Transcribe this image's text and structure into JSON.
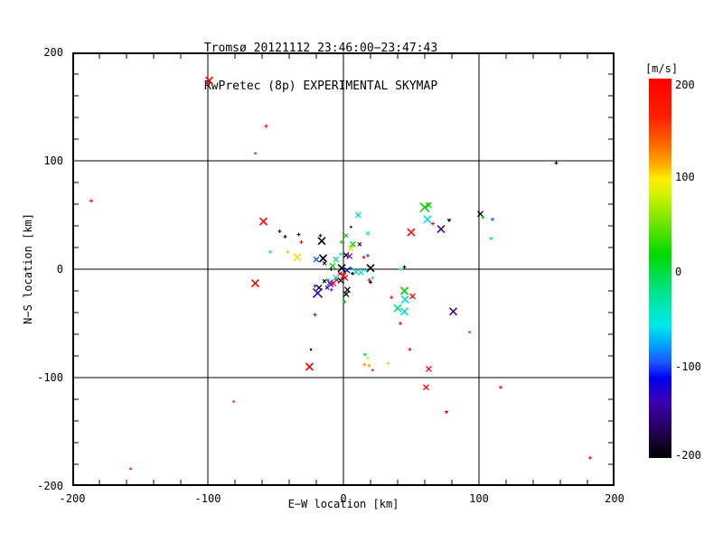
{
  "title_line1": "Tromsø 20121112 23:46:00−23:47:43",
  "title_line2": "RwPretec (8p) EXPERIMENTAL SKYMAP",
  "chart_data": {
    "type": "scatter",
    "title": "Tromsø 20121112 23:46:00−23:47:43 / RwPretec (8p) EXPERIMENTAL SKYMAP",
    "xlabel": "E−W location [km]",
    "ylabel": "N−S location [km]",
    "xlim": [
      -200,
      200
    ],
    "ylim": [
      -200,
      200
    ],
    "xticks": [
      {
        "v": -200,
        "label": "-200"
      },
      {
        "v": -100,
        "label": "-100"
      },
      {
        "v": 0,
        "label": "0"
      },
      {
        "v": 100,
        "label": "100"
      },
      {
        "v": 200,
        "label": "200"
      }
    ],
    "yticks": [
      {
        "v": -200,
        "label": "-200"
      },
      {
        "v": -100,
        "label": "-100"
      },
      {
        "v": 0,
        "label": "0"
      },
      {
        "v": 100,
        "label": "100"
      },
      {
        "v": 200,
        "label": "200"
      }
    ],
    "grid_values": [
      -100,
      0,
      100
    ],
    "minor_tick_step": 20,
    "grid": "on",
    "colorbar": {
      "label": "[m/s]",
      "min": -200,
      "max": 200,
      "ticks": [
        {
          "v": 200,
          "label": "200"
        },
        {
          "v": 100,
          "label": "100"
        },
        {
          "v": 0,
          "label": "0"
        },
        {
          "v": -100,
          "label": "-100"
        },
        {
          "v": -200,
          "label": "-200"
        }
      ],
      "stops": [
        {
          "p": 0.0,
          "c": "#ff0000"
        },
        {
          "p": 0.1,
          "c": "#ff1e00"
        },
        {
          "p": 0.175,
          "c": "#ff6a00"
        },
        {
          "p": 0.225,
          "c": "#ffaa00"
        },
        {
          "p": 0.265,
          "c": "#ffee00"
        },
        {
          "p": 0.315,
          "c": "#c8f000"
        },
        {
          "p": 0.39,
          "c": "#62e400"
        },
        {
          "p": 0.465,
          "c": "#00d800"
        },
        {
          "p": 0.525,
          "c": "#00e059"
        },
        {
          "p": 0.59,
          "c": "#00e6ad"
        },
        {
          "p": 0.65,
          "c": "#00e9e9"
        },
        {
          "p": 0.7,
          "c": "#00a5ff"
        },
        {
          "p": 0.75,
          "c": "#1e50ff"
        },
        {
          "p": 0.79,
          "c": "#0000ee"
        },
        {
          "p": 0.85,
          "c": "#3c00b4"
        },
        {
          "p": 0.91,
          "c": "#2d0070"
        },
        {
          "p": 0.965,
          "c": "#130028"
        },
        {
          "p": 1.0,
          "c": "#000000"
        }
      ]
    },
    "points": [
      {
        "x": -99,
        "y": 174,
        "c": "#ff0000",
        "m": "x",
        "s": 4
      },
      {
        "x": -57,
        "y": 132,
        "c": "#ff0000",
        "m": "+",
        "s": 2
      },
      {
        "x": -65,
        "y": 107,
        "c": "#ff0000",
        "m": ".",
        "s": 1
      },
      {
        "x": 157,
        "y": 98,
        "c": "#000000",
        "m": "+",
        "s": 2
      },
      {
        "x": -186,
        "y": 63,
        "c": "#ff0000",
        "m": "+",
        "s": 2
      },
      {
        "x": 63,
        "y": 59,
        "c": "#00d000",
        "m": "x",
        "s": 3
      },
      {
        "x": 60,
        "y": 57,
        "c": "#00d000",
        "m": "x",
        "s": 5
      },
      {
        "x": 101,
        "y": 51,
        "c": "#000000",
        "m": "x",
        "s": 3
      },
      {
        "x": 103,
        "y": 48,
        "c": "#00d000",
        "m": "+",
        "s": 2
      },
      {
        "x": 11,
        "y": 50,
        "c": "#00dcdc",
        "m": "x",
        "s": 3
      },
      {
        "x": 110,
        "y": 46,
        "c": "#0055ff",
        "m": "+",
        "s": 2
      },
      {
        "x": 62,
        "y": 46,
        "c": "#00dcdc",
        "m": "x",
        "s": 4
      },
      {
        "x": 78,
        "y": 45,
        "c": "#000000",
        "m": "^",
        "s": 1
      },
      {
        "x": -59,
        "y": 44,
        "c": "#ff0000",
        "m": "x",
        "s": 4
      },
      {
        "x": 66,
        "y": 42,
        "c": "#ff0000",
        "m": "+",
        "s": 2
      },
      {
        "x": 5.5,
        "y": 39,
        "c": "#000000",
        "m": ".",
        "s": 1
      },
      {
        "x": 72,
        "y": 37,
        "c": "#4b0082",
        "m": "x",
        "s": 4
      },
      {
        "x": -47,
        "y": 35,
        "c": "#0000aa",
        "m": "+",
        "s": 2
      },
      {
        "x": 50,
        "y": 34,
        "c": "#ff0000",
        "m": "x",
        "s": 4
      },
      {
        "x": 18,
        "y": 33,
        "c": "#00dcdc",
        "m": "x",
        "s": 2
      },
      {
        "x": -33,
        "y": 32,
        "c": "#000000",
        "m": "+",
        "s": 2
      },
      {
        "x": 2,
        "y": 31,
        "c": "#00d000",
        "m": "x",
        "s": 2
      },
      {
        "x": -17,
        "y": 31,
        "c": "#0000aa",
        "m": "+",
        "s": 2
      },
      {
        "x": -43,
        "y": 30,
        "c": "#000000",
        "m": "+",
        "s": 2
      },
      {
        "x": 109,
        "y": 28,
        "c": "#00dcdc",
        "m": "^",
        "s": 1
      },
      {
        "x": -16,
        "y": 26,
        "c": "#000000",
        "m": "x",
        "s": 4
      },
      {
        "x": -31,
        "y": 25,
        "c": "#ff0000",
        "m": "+",
        "s": 2
      },
      {
        "x": -1.5,
        "y": 25,
        "c": "#00d000",
        "m": "+",
        "s": 2
      },
      {
        "x": 7,
        "y": 23,
        "c": "#00d000",
        "m": "x",
        "s": 3
      },
      {
        "x": 12,
        "y": 23,
        "c": "#000000",
        "m": "x",
        "s": 2
      },
      {
        "x": 5.5,
        "y": 19,
        "c": "#e8e000",
        "m": "x",
        "s": 3
      },
      {
        "x": -54,
        "y": 16,
        "c": "#00dcdc",
        "m": "+",
        "s": 2
      },
      {
        "x": -41,
        "y": 16,
        "c": "#b0dd00",
        "m": "+",
        "s": 2
      },
      {
        "x": -2,
        "y": 14,
        "c": "#00dcdc",
        "m": "+",
        "s": 2
      },
      {
        "x": 2,
        "y": 13,
        "c": "#000000",
        "m": "x",
        "s": 3
      },
      {
        "x": 18,
        "y": 12.5,
        "c": "#0055ff",
        "m": "+",
        "s": 2
      },
      {
        "x": 4.5,
        "y": 12,
        "c": "#8800cc",
        "m": "x",
        "s": 3
      },
      {
        "x": -34,
        "y": 11,
        "c": "#e8e000",
        "m": "x",
        "s": 4
      },
      {
        "x": 15,
        "y": 11,
        "c": "#ff0000",
        "m": "+",
        "s": 2
      },
      {
        "x": -15,
        "y": 10,
        "c": "#000000",
        "m": "x",
        "s": 4
      },
      {
        "x": -20,
        "y": 9,
        "c": "#0055ff",
        "m": "x",
        "s": 3
      },
      {
        "x": -5.5,
        "y": 9,
        "c": "#00dd88",
        "m": "x",
        "s": 3
      },
      {
        "x": -14,
        "y": 5.5,
        "c": "#000000",
        "m": "x",
        "s": 2
      },
      {
        "x": -8,
        "y": 3,
        "c": "#00d000",
        "m": "x",
        "s": 3
      },
      {
        "x": 45,
        "y": 2,
        "c": "#000000",
        "m": "+",
        "s": 2
      },
      {
        "x": -1.3,
        "y": 1,
        "c": "#000000",
        "m": "x",
        "s": 4
      },
      {
        "x": 5.3,
        "y": 1,
        "c": "#0055ff",
        "m": "+",
        "s": 2
      },
      {
        "x": 20,
        "y": 1,
        "c": "#000000",
        "m": "x",
        "s": 4
      },
      {
        "x": 42,
        "y": 0,
        "c": "#00dcdc",
        "m": "+",
        "s": 2
      },
      {
        "x": -9,
        "y": 0,
        "c": "#000000",
        "m": "+",
        "s": 2
      },
      {
        "x": 17,
        "y": -1,
        "c": "#00dcdc",
        "m": "+",
        "s": 2
      },
      {
        "x": 2.7,
        "y": -1,
        "c": "#0000aa",
        "m": "x",
        "s": 3
      },
      {
        "x": 9.3,
        "y": -2.5,
        "c": "#00dcdc",
        "m": "x",
        "s": 3
      },
      {
        "x": -2.7,
        "y": -4,
        "c": "#cc0000",
        "m": "x",
        "s": 2
      },
      {
        "x": 6.7,
        "y": -4,
        "c": "#000000",
        "m": "+",
        "s": 2
      },
      {
        "x": 0,
        "y": -6,
        "c": "#ff0000",
        "m": "x",
        "s": 3
      },
      {
        "x": 13,
        "y": -3,
        "c": "#00dcdc",
        "m": "x",
        "s": 3
      },
      {
        "x": 21.5,
        "y": -8,
        "c": "#00dcdc",
        "m": "+",
        "s": 2
      },
      {
        "x": -5.5,
        "y": -8,
        "c": "#00dcdc",
        "m": "x",
        "s": 3
      },
      {
        "x": 1.3,
        "y": -8,
        "c": "#ff0000",
        "m": "x",
        "s": 3
      },
      {
        "x": -5,
        "y": -10,
        "c": "#ff0000",
        "m": "x",
        "s": 2
      },
      {
        "x": -11.5,
        "y": -10,
        "c": "#00d000",
        "m": "+",
        "s": 2
      },
      {
        "x": 19,
        "y": -10,
        "c": "#ff0000",
        "m": "+",
        "s": 2
      },
      {
        "x": -2,
        "y": -10.5,
        "c": "#000000",
        "m": "x",
        "s": 3
      },
      {
        "x": -14,
        "y": -11,
        "c": "#000000",
        "m": "x",
        "s": 2
      },
      {
        "x": 20,
        "y": -12,
        "c": "#000000",
        "m": "+",
        "s": 2
      },
      {
        "x": -10,
        "y": -12.5,
        "c": "#0055ff",
        "m": "x",
        "s": 3
      },
      {
        "x": -65,
        "y": -13,
        "c": "#ff0000",
        "m": "x",
        "s": 4
      },
      {
        "x": -7.5,
        "y": -13,
        "c": "#ff0000",
        "m": "x",
        "s": 3
      },
      {
        "x": -9.3,
        "y": -14,
        "c": "#8800cc",
        "m": "x",
        "s": 3
      },
      {
        "x": -21,
        "y": -15.5,
        "c": "#8800cc",
        "m": "+",
        "s": 2
      },
      {
        "x": -18,
        "y": -17,
        "c": "#000000",
        "m": "x",
        "s": 3
      },
      {
        "x": -12,
        "y": -17,
        "c": "#0000aa",
        "m": "x",
        "s": 2
      },
      {
        "x": 3,
        "y": -19,
        "c": "#000000",
        "m": "x",
        "s": 3
      },
      {
        "x": -8.9,
        "y": -19,
        "c": "#8800cc",
        "m": "+",
        "s": 2
      },
      {
        "x": 45,
        "y": -20,
        "c": "#00d000",
        "m": "x",
        "s": 4
      },
      {
        "x": -19,
        "y": -22,
        "c": "#2a00cc",
        "m": "x",
        "s": 5
      },
      {
        "x": 2,
        "y": -23,
        "c": "#000000",
        "m": "x",
        "s": 3
      },
      {
        "x": 51,
        "y": -25,
        "c": "#ff0000",
        "m": "x",
        "s": 3
      },
      {
        "x": 35.5,
        "y": -26,
        "c": "#ff0000",
        "m": "+",
        "s": 2
      },
      {
        "x": 45.5,
        "y": -28,
        "c": "#00dcdc",
        "m": "x",
        "s": 4
      },
      {
        "x": 1,
        "y": -30,
        "c": "#00d000",
        "m": "+",
        "s": 2
      },
      {
        "x": 40,
        "y": -36,
        "c": "#00dd88",
        "m": "x",
        "s": 4
      },
      {
        "x": 45,
        "y": -39,
        "c": "#00dcdc",
        "m": "x",
        "s": 4
      },
      {
        "x": 81,
        "y": -39,
        "c": "#4b0082",
        "m": "x",
        "s": 4
      },
      {
        "x": -21,
        "y": -42,
        "c": "#8800cc",
        "m": "+",
        "s": 2
      },
      {
        "x": 42,
        "y": -50,
        "c": "#ff0000",
        "m": "+",
        "s": 2
      },
      {
        "x": 93,
        "y": -58,
        "c": "#ff0000",
        "m": ".",
        "s": 1
      },
      {
        "x": -24,
        "y": -74,
        "c": "#000000",
        "m": ".",
        "s": 1
      },
      {
        "x": 49,
        "y": -74,
        "c": "#ff0000",
        "m": "+",
        "s": 2
      },
      {
        "x": 16,
        "y": -79,
        "c": "#00dd88",
        "m": "^",
        "s": 1
      },
      {
        "x": 18,
        "y": -82,
        "c": "#e8e000",
        "m": "+",
        "s": 2
      },
      {
        "x": 33,
        "y": -87,
        "c": "#e8e000",
        "m": "+",
        "s": 2
      },
      {
        "x": 15.5,
        "y": -88,
        "c": "#ff9900",
        "m": "+",
        "s": 2
      },
      {
        "x": 19,
        "y": -89,
        "c": "#ff9900",
        "m": "+",
        "s": 2
      },
      {
        "x": -25,
        "y": -90,
        "c": "#ff0000",
        "m": "x",
        "s": 4
      },
      {
        "x": 63,
        "y": -92,
        "c": "#ff0000",
        "m": "x",
        "s": 3
      },
      {
        "x": 21.5,
        "y": -93,
        "c": "#ff0000",
        "m": ".",
        "s": 1
      },
      {
        "x": 116,
        "y": -109,
        "c": "#ff0000",
        "m": "+",
        "s": 2
      },
      {
        "x": 61,
        "y": -109,
        "c": "#ff0000",
        "m": "x",
        "s": 3
      },
      {
        "x": -81,
        "y": -122,
        "c": "#ff0000",
        "m": ".",
        "s": 1
      },
      {
        "x": 76,
        "y": -132,
        "c": "#ff0000",
        "m": "^",
        "s": 1
      },
      {
        "x": 182,
        "y": -174,
        "c": "#ff0000",
        "m": "+",
        "s": 2
      },
      {
        "x": -157,
        "y": -184,
        "c": "#ff0000",
        "m": ".",
        "s": 1
      }
    ]
  }
}
